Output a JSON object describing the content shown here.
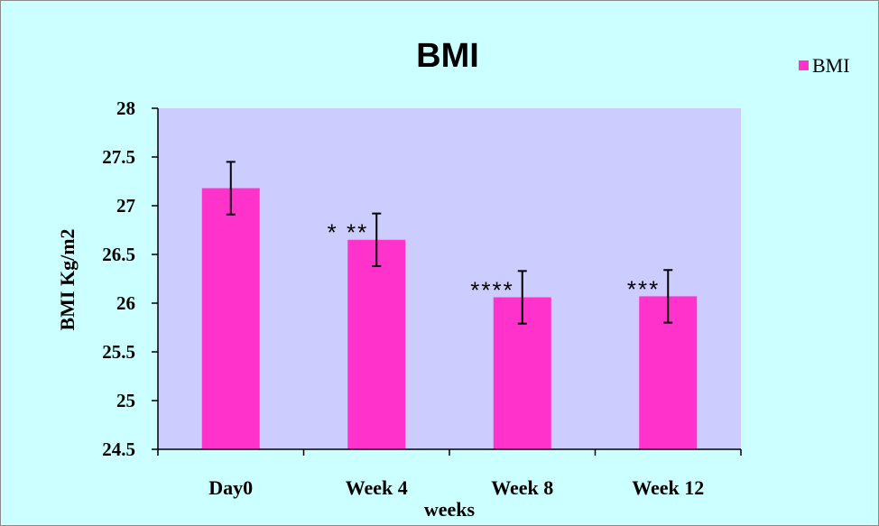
{
  "chart_data": {
    "type": "bar",
    "title": "BMI",
    "xlabel": "weeks",
    "ylabel": "BMI  Kg/m2",
    "categories": [
      "Day0",
      "Week 4",
      "Week 8",
      "Week 12"
    ],
    "series": [
      {
        "name": "BMI",
        "values": [
          27.18,
          26.65,
          26.06,
          26.07
        ],
        "error": [
          0.27,
          0.27,
          0.27,
          0.27
        ],
        "color": "#ff33cc"
      }
    ],
    "annotations": [
      "",
      "* **",
      "****",
      "***"
    ],
    "ylim": [
      24.5,
      28
    ],
    "yticks": [
      "24.5",
      "25",
      "25.5",
      "26",
      "26.5",
      "27",
      "27.5",
      "28"
    ],
    "legend": "top-right",
    "grid": false,
    "plot_background": "#ccccff",
    "chart_background": "#ccffff"
  }
}
